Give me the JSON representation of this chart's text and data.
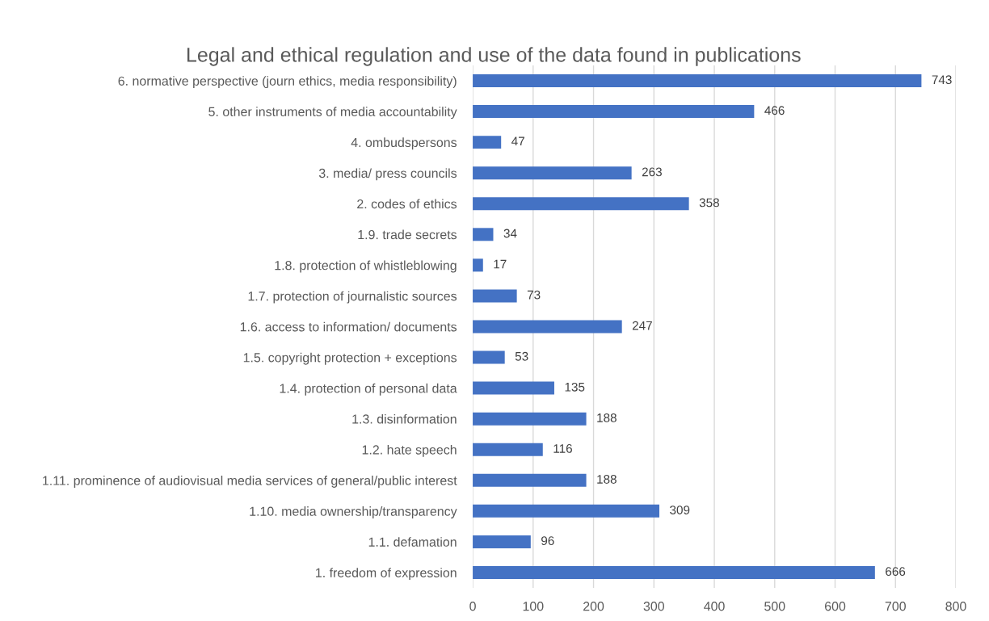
{
  "chart_data": {
    "type": "bar",
    "orientation": "horizontal",
    "title": "Legal and ethical regulation and use of the data found in publications",
    "categories": [
      "6. normative perspective (journ ethics, media responsibility)",
      "5. other instruments of media accountability",
      "4. ombudspersons",
      "3. media/ press councils",
      "2. codes of ethics",
      "1.9. trade secrets",
      "1.8. protection of whistleblowing",
      "1.7. protection of journalistic sources",
      "1.6. access to information/ documents",
      "1.5. copyright protection + exceptions",
      "1.4. protection of personal data",
      "1.3. disinformation",
      "1.2. hate speech",
      "1.11. prominence of audiovisual media services of general/public interest",
      "1.10. media ownership/transparency",
      "1.1. defamation",
      "1. freedom of expression"
    ],
    "values": [
      743,
      466,
      47,
      263,
      358,
      34,
      17,
      73,
      247,
      53,
      135,
      188,
      116,
      188,
      309,
      96,
      666
    ],
    "color": "#4472c4",
    "xlim": [
      0,
      800
    ],
    "xticks": [
      0,
      100,
      200,
      300,
      400,
      500,
      600,
      700,
      800
    ],
    "grid": "x",
    "data_labels": true
  }
}
